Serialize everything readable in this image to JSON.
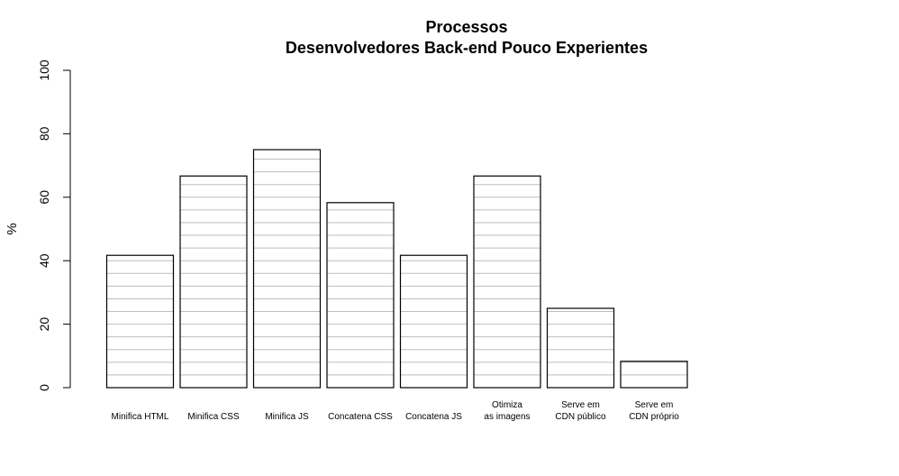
{
  "chart_data": {
    "type": "bar",
    "title": "Processos",
    "subtitle": "Desenvolvedores Back-end Pouco Experientes",
    "xlabel": "",
    "ylabel": "%",
    "ylim": [
      0,
      100
    ],
    "yticks": [
      "0",
      "20",
      "40",
      "60",
      "80",
      "100"
    ],
    "categories": [
      [
        "Minifica HTML"
      ],
      [
        "Minifica CSS"
      ],
      [
        "Minifica JS"
      ],
      [
        "Concatena CSS"
      ],
      [
        "Concatena JS"
      ],
      [
        "Otimiza",
        "as imagens"
      ],
      [
        "Serve em",
        "CDN público"
      ],
      [
        "Serve em",
        "CDN próprio"
      ]
    ],
    "values": [
      41.7,
      66.7,
      75.0,
      58.3,
      41.7,
      66.7,
      25.0,
      8.3
    ],
    "fill_lines_step": 4,
    "colors": {
      "bar_fill": "#ffffff",
      "bar_border": "#000000",
      "hatch": "#bebebe"
    },
    "grid": false,
    "legend": "none"
  }
}
